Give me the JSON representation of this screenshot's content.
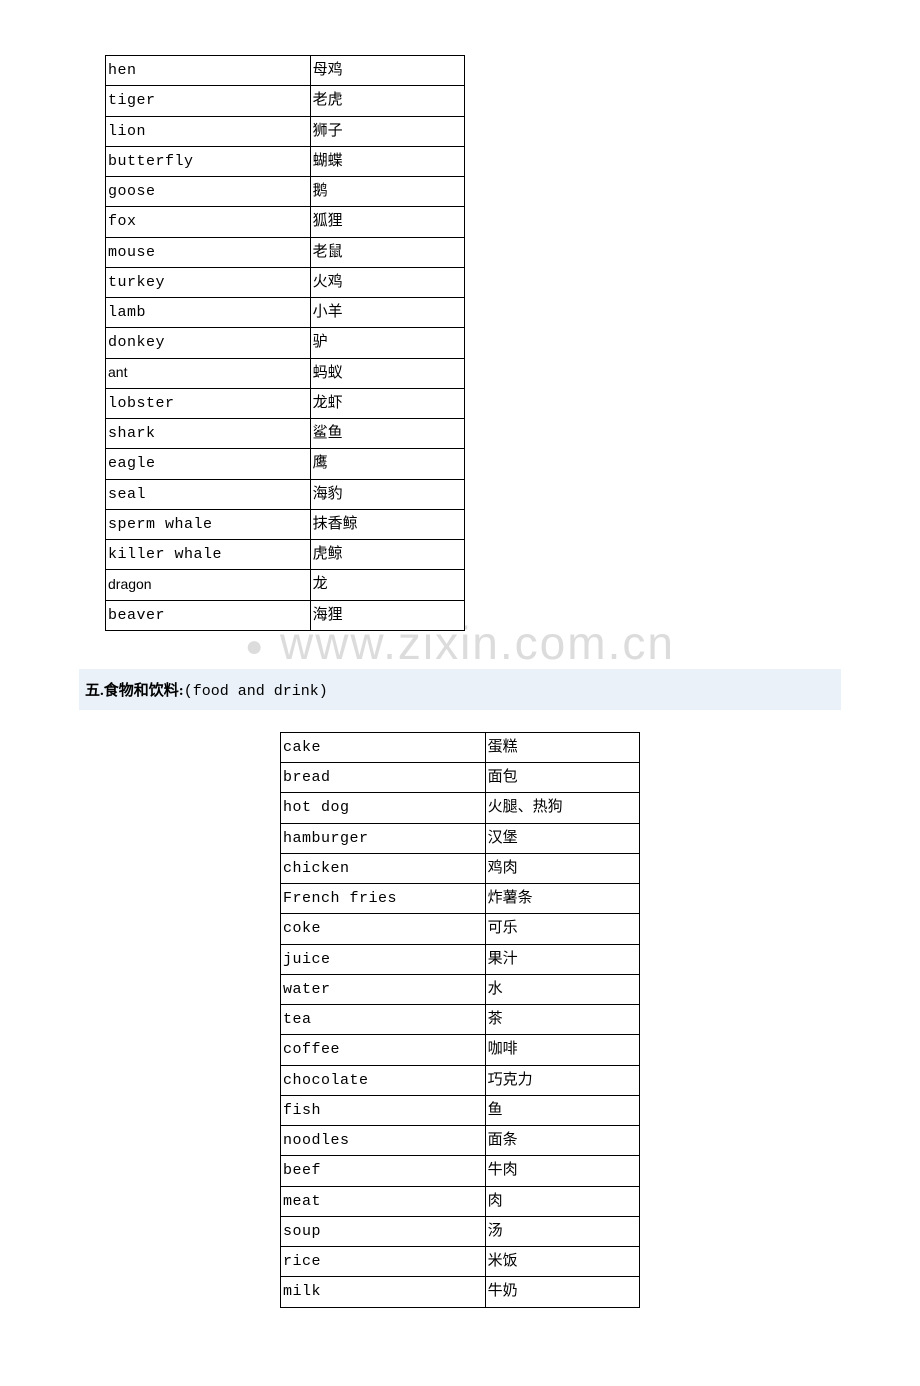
{
  "watermark": "www.zixin.com.cn",
  "section_header": {
    "prefix": "五.食物和饮料:",
    "paren": "(food and drink)"
  },
  "animals": {
    "rows": [
      {
        "en": "hen",
        "cn": "母鸡",
        "sans": false
      },
      {
        "en": "tiger",
        "cn": "老虎",
        "sans": false
      },
      {
        "en": "lion",
        "cn": "狮子",
        "sans": false
      },
      {
        "en": "butterfly",
        "cn": "蝴蝶",
        "sans": false
      },
      {
        "en": "goose",
        "cn": "鹅",
        "sans": false
      },
      {
        "en": "fox",
        "cn": "狐狸",
        "sans": false
      },
      {
        "en": "mouse",
        "cn": "老鼠",
        "sans": false
      },
      {
        "en": "turkey",
        "cn": "火鸡",
        "sans": false
      },
      {
        "en": "lamb",
        "cn": "小羊",
        "sans": false
      },
      {
        "en": "donkey",
        "cn": "驴",
        "sans": false
      },
      {
        "en": "ant",
        "cn": "蚂蚁",
        "sans": true
      },
      {
        "en": "lobster",
        "cn": "龙虾",
        "sans": false
      },
      {
        "en": "shark",
        "cn": "鲨鱼",
        "sans": false
      },
      {
        "en": "eagle",
        "cn": "鹰",
        "sans": false
      },
      {
        "en": "seal",
        "cn": "海豹",
        "sans": false
      },
      {
        "en": "sperm whale",
        "cn": "抹香鲸",
        "sans": false
      },
      {
        "en": "killer whale",
        "cn": "虎鲸",
        "sans": false
      },
      {
        "en": "dragon",
        "cn": "龙",
        "sans": true
      },
      {
        "en": "beaver",
        "cn": "海狸",
        "sans": false
      }
    ]
  },
  "foods": {
    "rows": [
      {
        "en": "cake",
        "cn": "蛋糕"
      },
      {
        "en": "bread",
        "cn": "面包"
      },
      {
        "en": "hot dog",
        "cn": "火腿、热狗"
      },
      {
        "en": "hamburger",
        "cn": "汉堡"
      },
      {
        "en": "chicken",
        "cn": "鸡肉"
      },
      {
        "en": "French fries",
        "cn": "炸薯条"
      },
      {
        "en": "coke",
        "cn": "可乐"
      },
      {
        "en": "juice",
        "cn": "果汁"
      },
      {
        "en": "water",
        "cn": "水"
      },
      {
        "en": "tea",
        "cn": "茶"
      },
      {
        "en": "coffee",
        "cn": "咖啡"
      },
      {
        "en": "chocolate",
        "cn": "巧克力"
      },
      {
        "en": "fish",
        "cn": "鱼"
      },
      {
        "en": "noodles",
        "cn": "面条"
      },
      {
        "en": "beef",
        "cn": "牛肉"
      },
      {
        "en": "meat",
        "cn": "肉"
      },
      {
        "en": "soup",
        "cn": "汤"
      },
      {
        "en": "rice",
        "cn": "米饭"
      },
      {
        "en": "milk",
        "cn": "牛奶"
      }
    ]
  }
}
